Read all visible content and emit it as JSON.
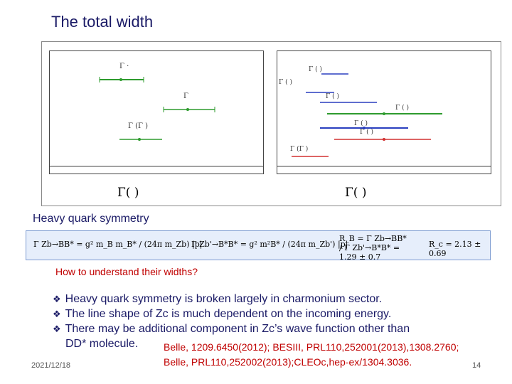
{
  "slide": {
    "title": "The total width",
    "heavy_quark_title": "Heavy quark symmetry",
    "question": "How to understand their widths?",
    "bullets": [
      "Heavy quark symmetry is broken largely in charmonium sector.",
      "The line shape of Zc is much dependent on the incoming energy.",
      "There may be additional component in Zc’s wave function other than"
    ],
    "continuation": "DD* molecule.",
    "references": [
      "Belle, 1209.6450(2012); BESIII, PRL110,252001(2013),1308.2760;",
      "Belle, PRL110,252002(2013);CLEOc,hep-ex/1304.3036."
    ],
    "date": "2021/12/18",
    "page_number": "14"
  },
  "figure": {
    "left_axis_label": "Γ(       )",
    "right_axis_label": "Γ(       )",
    "left_entries": [
      {
        "label": "Γ",
        "color": "#2e9b2e"
      },
      {
        "label": "Γ",
        "color": "#2e9b2e"
      },
      {
        "label": "Γ(Γ)",
        "color": "#2e9b2e"
      }
    ],
    "right_entries": [
      {
        "label": "Γ(     )",
        "color": "#2a3fbf"
      },
      {
        "label": "Γ(    )",
        "color": "#2a3fbf"
      },
      {
        "label": "Γ(     )",
        "color": "#2e9b2e"
      },
      {
        "label": "Γ(     )",
        "color": "#2e9b2e"
      },
      {
        "label": "Γ(  )",
        "color": "#2a3fbf"
      },
      {
        "label": "Γ(  )",
        "color": "#d23030"
      },
      {
        "label": "Γ(Γ)",
        "color": "#d23030"
      }
    ]
  },
  "formula": {
    "left": "Γ Zb→BB* = g² m_B m_B* / (24π m_Zb) |p|",
    "middle": "Γ Zb'→B*B* = g² m²B* / (24π m_Zb') |p|",
    "rb": "R_B = Γ Zb→BB* / Γ Zb'→B*B* = 1.29 ± 0.7",
    "rc": "R_c = 2.13 ± 0.69"
  }
}
